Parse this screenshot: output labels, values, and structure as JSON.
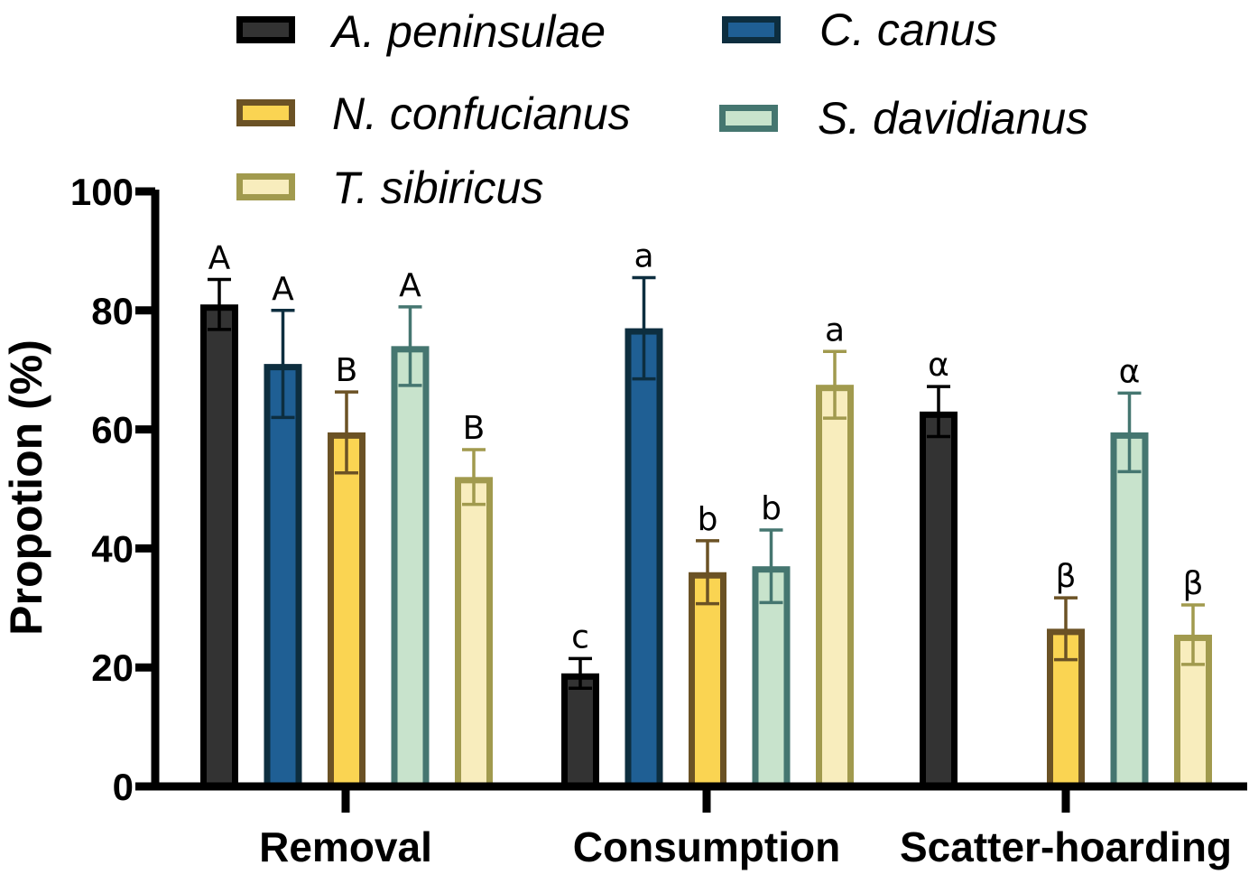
{
  "chart_data": {
    "type": "bar",
    "title": "",
    "xlabel": "",
    "ylabel": "Propotion (%)",
    "ylim": [
      0,
      100
    ],
    "yticks": [
      0,
      20,
      40,
      60,
      80,
      100
    ],
    "grid": false,
    "legend_position": "top",
    "categories": [
      "Removal",
      "Consumption",
      "Scatter-hoarding"
    ],
    "series": [
      {
        "name": "A. peninsulae",
        "fill": "#333333",
        "stroke": "#000000",
        "values": [
          81,
          19,
          63
        ],
        "errors": [
          4.2,
          2.5,
          4.2
        ],
        "sig": [
          "A",
          "c",
          "α"
        ]
      },
      {
        "name": "C. canus",
        "fill": "#1f5f94",
        "stroke": "#0d2e3f",
        "values": [
          71,
          77,
          null
        ],
        "errors": [
          9.0,
          8.5,
          null
        ],
        "sig": [
          "A",
          "a",
          ""
        ]
      },
      {
        "name": "N. confucianus",
        "fill": "#fad452",
        "stroke": "#6b5225",
        "values": [
          59.5,
          36,
          26.5
        ],
        "errors": [
          6.8,
          5.3,
          5.2
        ],
        "sig": [
          "B",
          "b",
          "β"
        ]
      },
      {
        "name": "S. davidianus",
        "fill": "#c8e3cc",
        "stroke": "#457670",
        "values": [
          74,
          37,
          59.5
        ],
        "errors": [
          6.6,
          6.1,
          6.6
        ],
        "sig": [
          "A",
          "b",
          "α"
        ]
      },
      {
        "name": "T. sibiricus",
        "fill": "#f8edbd",
        "stroke": "#a19a4e",
        "values": [
          52,
          null,
          25.5
        ],
        "errors": [
          4.6,
          null,
          5.0
        ],
        "sig": [
          "B",
          "",
          "β"
        ]
      }
    ],
    "extra_bars": [
      {
        "series": "T. sibiricus",
        "category": "Consumption",
        "value": 67.5,
        "error": 5.6,
        "sig": "a"
      }
    ]
  }
}
